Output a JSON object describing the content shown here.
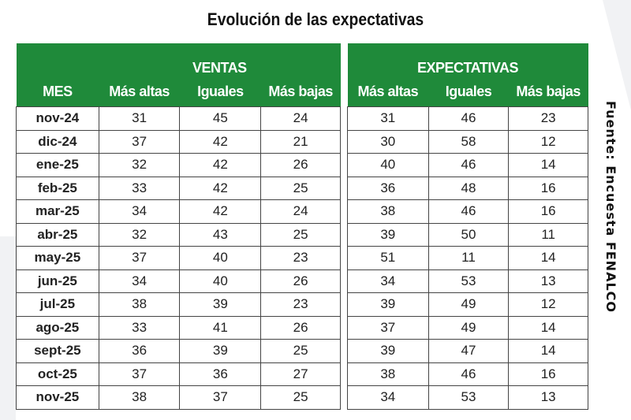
{
  "title": "Evolución de las expectativas",
  "source": "Fuente: Encuesta FENALCO",
  "header": {
    "mes": "MES",
    "ventas": "VENTAS",
    "expectativas": "EXPECTATIVAS",
    "cols": [
      "Más altas",
      "Iguales",
      "Más bajas"
    ]
  },
  "colors": {
    "header_green": "#1f8a3a"
  },
  "rows": [
    {
      "mes": "nov-24",
      "v": [
        "31",
        "45",
        "24"
      ],
      "e": [
        "31",
        "46",
        "23"
      ]
    },
    {
      "mes": "dic-24",
      "v": [
        "37",
        "42",
        "21"
      ],
      "e": [
        "30",
        "58",
        "12"
      ]
    },
    {
      "mes": "ene-25",
      "v": [
        "32",
        "42",
        "26"
      ],
      "e": [
        "40",
        "46",
        "14"
      ]
    },
    {
      "mes": "feb-25",
      "v": [
        "33",
        "42",
        "25"
      ],
      "e": [
        "36",
        "48",
        "16"
      ]
    },
    {
      "mes": "mar-25",
      "v": [
        "34",
        "42",
        "24"
      ],
      "e": [
        "38",
        "46",
        "16"
      ]
    },
    {
      "mes": "abr-25",
      "v": [
        "32",
        "43",
        "25"
      ],
      "e": [
        "39",
        "50",
        "11"
      ]
    },
    {
      "mes": "may-25",
      "v": [
        "37",
        "40",
        "23"
      ],
      "e": [
        "51",
        "11",
        "14"
      ]
    },
    {
      "mes": "jun-25",
      "v": [
        "34",
        "40",
        "26"
      ],
      "e": [
        "34",
        "53",
        "13"
      ]
    },
    {
      "mes": "jul-25",
      "v": [
        "38",
        "39",
        "23"
      ],
      "e": [
        "39",
        "49",
        "12"
      ]
    },
    {
      "mes": "ago-25",
      "v": [
        "33",
        "41",
        "26"
      ],
      "e": [
        "37",
        "49",
        "14"
      ]
    },
    {
      "mes": "sept-25",
      "v": [
        "36",
        "39",
        "25"
      ],
      "e": [
        "39",
        "47",
        "14"
      ]
    },
    {
      "mes": "oct-25",
      "v": [
        "37",
        "36",
        "27"
      ],
      "e": [
        "38",
        "46",
        "16"
      ]
    },
    {
      "mes": "nov-25",
      "v": [
        "38",
        "37",
        "25"
      ],
      "e": [
        "34",
        "53",
        "13"
      ]
    }
  ]
}
